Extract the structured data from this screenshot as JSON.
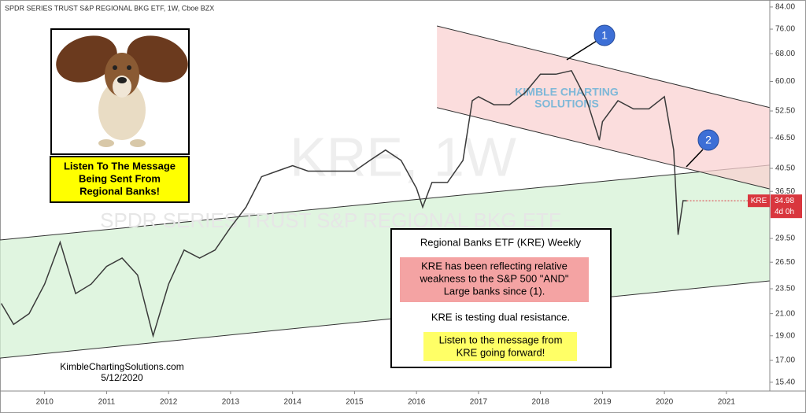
{
  "chart_data": {
    "type": "line",
    "header": "SPDR SERIES TRUST S&P REGIONAL BKG ETF, 1W, Cboe BZX",
    "watermark": "KRE, 1W",
    "watermark_sub": "SPDR SERIES TRUST S&P REGIONAL BKG ETF",
    "logo": [
      "KIMBLE CHARTING",
      "SOLUTIONS"
    ],
    "color": "#3a3a3a",
    "log_y": true,
    "x": [
      2009.3,
      2009.5,
      2009.75,
      2010.0,
      2010.25,
      2010.5,
      2010.75,
      2011.0,
      2011.25,
      2011.5,
      2011.75,
      2012.0,
      2012.25,
      2012.5,
      2012.75,
      2013.0,
      2013.25,
      2013.5,
      2013.75,
      2014.0,
      2014.25,
      2014.5,
      2014.75,
      2015.0,
      2015.25,
      2015.5,
      2015.75,
      2016.0,
      2016.1,
      2016.25,
      2016.5,
      2016.75,
      2016.9,
      2017.0,
      2017.25,
      2017.5,
      2017.75,
      2018.0,
      2018.25,
      2018.5,
      2018.75,
      2018.95,
      2019.0,
      2019.25,
      2019.5,
      2019.75,
      2020.0,
      2020.15,
      2020.22,
      2020.3,
      2020.36
    ],
    "values": [
      22,
      20,
      21,
      24,
      29,
      23,
      24,
      26,
      27,
      25,
      19,
      24,
      28,
      27,
      28,
      31,
      34,
      39,
      40,
      41,
      40,
      40,
      40,
      40,
      42,
      44,
      42,
      37,
      34,
      38,
      38,
      42,
      55,
      56,
      54,
      54,
      57,
      62,
      62,
      63,
      55,
      46,
      50,
      55,
      53,
      53,
      56,
      44,
      30,
      35,
      34.98
    ],
    "xlim": [
      2009.28,
      2021.7
    ],
    "xticks": [
      2010,
      2011,
      2012,
      2013,
      2014,
      2015,
      2016,
      2017,
      2018,
      2019,
      2020,
      2021
    ],
    "ylim": [
      14.8,
      86.7
    ],
    "yticks": [
      {
        "value": 15.4,
        "label": "15.40"
      },
      {
        "value": 17,
        "label": "17.00"
      },
      {
        "value": 19,
        "label": "19.00"
      },
      {
        "value": 21,
        "label": "21.00"
      },
      {
        "value": 23.5,
        "label": "23.50"
      },
      {
        "value": 26.5,
        "label": "26.50"
      },
      {
        "value": 29.5,
        "label": "29.50"
      },
      {
        "value": 36.5,
        "label": "36.50"
      },
      {
        "value": 40.5,
        "label": "40.50"
      },
      {
        "value": 46.5,
        "label": "46.50"
      },
      {
        "value": 52.5,
        "label": "52.50"
      },
      {
        "value": 60,
        "label": "60.00"
      },
      {
        "value": 68,
        "label": "68.00"
      },
      {
        "value": 76,
        "label": "76.00"
      },
      {
        "value": 84,
        "label": "84.00"
      }
    ],
    "price_tag": {
      "symbol": "KRE",
      "last_value": 34.98,
      "countdown": "4d 0h"
    },
    "channels": [
      {
        "color": "#d6f2d6",
        "x": [
          2009.28,
          2021.7
        ],
        "upper": [
          29.3,
          41.1
        ],
        "lower": [
          17.18,
          24.35
        ]
      },
      {
        "color": "#f9d2d2",
        "x": [
          2016.33,
          2021.7
        ],
        "upper": [
          77.1,
          53.3
        ],
        "lower": [
          53.3,
          36.9
        ]
      }
    ],
    "markers": [
      "1",
      "2"
    ],
    "message_box": [
      "Listen To The Message",
      "Being Sent From",
      "Regional Banks!"
    ],
    "callout": {
      "title": "Regional Banks ETF (KRE) Weekly",
      "red_note": [
        "KRE has been reflecting relative",
        "weakness to the S&P 500 \"AND\"",
        "Large banks since (1)."
      ],
      "note": "KRE is testing dual resistance.",
      "yellow_note": [
        "Listen to the message from",
        "KRE going forward!"
      ]
    },
    "credit": "KimbleChartingSolutions.com",
    "date": "5/12/2020"
  }
}
